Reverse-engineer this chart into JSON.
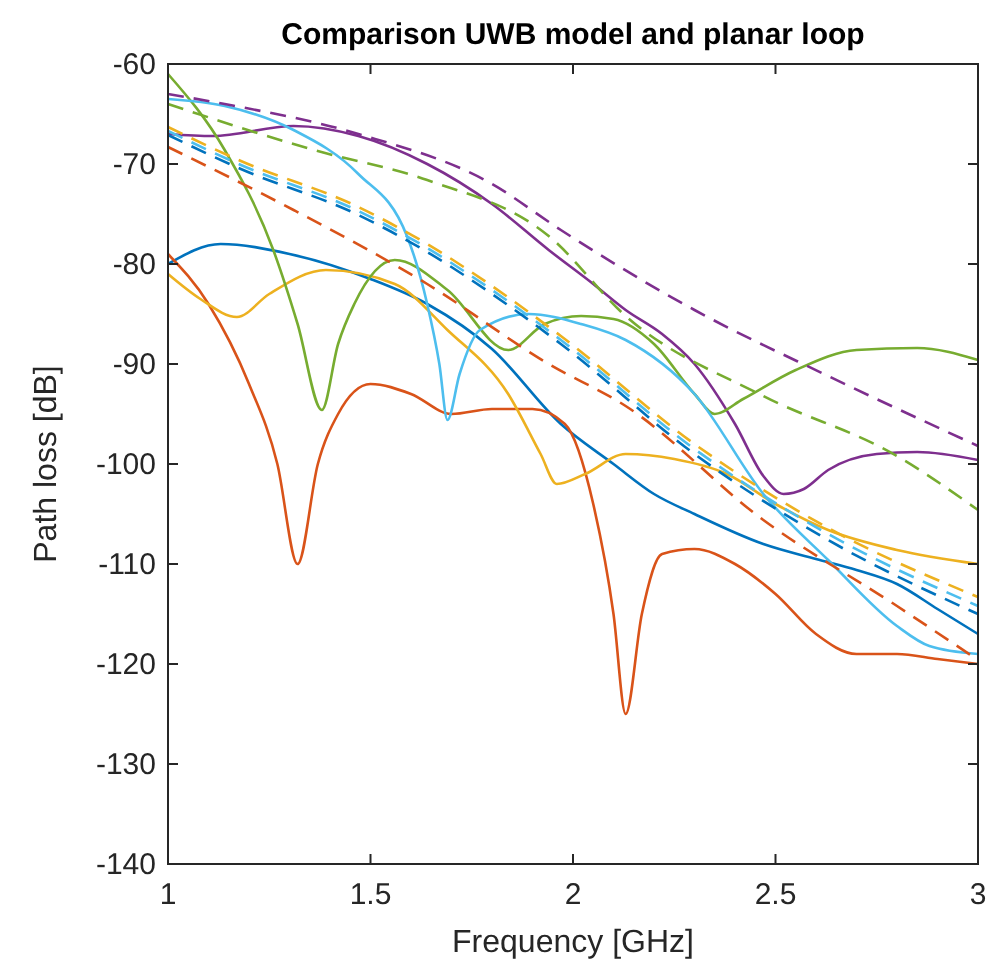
{
  "chart_data": {
    "type": "line",
    "title": "Comparison UWB model and planar loop",
    "xlabel": "Frequency [GHz]",
    "ylabel": "Path loss [dB]",
    "xlim": [
      1,
      3
    ],
    "xticks": [
      1,
      1.5,
      2,
      2.5,
      3
    ],
    "ylim": [
      -140,
      -60
    ],
    "yticks": [
      -140,
      -130,
      -120,
      -110,
      -100,
      -90,
      -80,
      -70,
      -60
    ],
    "grid": false,
    "series": [
      {
        "color": "#0072bd",
        "line_style": "solid",
        "x": [
          1,
          1.13,
          1.3,
          1.5,
          1.64,
          1.8,
          1.97,
          2.1,
          2.2,
          2.3,
          2.47,
          2.6,
          2.7,
          2.8,
          2.9,
          3
        ],
        "values": [
          -80,
          -78,
          -79,
          -81.5,
          -84,
          -88.5,
          -96,
          -100,
          -103,
          -105,
          -108,
          -109.5,
          -110.6,
          -112,
          -114.5,
          -117
        ]
      },
      {
        "color": "#d95319",
        "line_style": "solid",
        "x": [
          1,
          1.1,
          1.2,
          1.27,
          1.32,
          1.37,
          1.42,
          1.5,
          1.6,
          1.7,
          1.8,
          1.9,
          1.98,
          2.05,
          2.1,
          2.13,
          2.17,
          2.22,
          2.3,
          2.4,
          2.5,
          2.6,
          2.7,
          2.8,
          2.9,
          3
        ],
        "values": [
          -79,
          -84,
          -92,
          -100,
          -110,
          -100,
          -95,
          -92,
          -93,
          -95,
          -94.5,
          -94.5,
          -96,
          -104,
          -115,
          -125,
          -115,
          -109,
          -108.5,
          -110,
          -113,
          -117,
          -119,
          -119,
          -119.5,
          -120
        ]
      },
      {
        "color": "#edb120",
        "line_style": "solid",
        "x": [
          1,
          1.08,
          1.17,
          1.25,
          1.39,
          1.56,
          1.69,
          1.84,
          1.92,
          1.96,
          2.03,
          2.13,
          2.25,
          2.38,
          2.5,
          2.63,
          2.8,
          3
        ],
        "values": [
          -81,
          -83.5,
          -85.3,
          -83,
          -80.6,
          -82,
          -86.6,
          -93,
          -99,
          -102,
          -101,
          -99,
          -99.5,
          -101,
          -104,
          -106.6,
          -108.6,
          -110
        ]
      },
      {
        "color": "#7e2f8e",
        "line_style": "solid",
        "x": [
          1,
          1.11,
          1.31,
          1.47,
          1.64,
          1.8,
          1.94,
          2.05,
          2.13,
          2.22,
          2.3,
          2.4,
          2.47,
          2.52,
          2.57,
          2.63,
          2.75,
          2.85,
          3
        ],
        "values": [
          -67,
          -67.2,
          -66.2,
          -67.2,
          -70,
          -74,
          -78.6,
          -82,
          -84.6,
          -87,
          -90,
          -96,
          -101.2,
          -103,
          -102.5,
          -100.6,
          -99,
          -98.8,
          -99.6
        ]
      },
      {
        "color": "#77ac30",
        "line_style": "solid",
        "x": [
          1,
          1.14,
          1.26,
          1.32,
          1.38,
          1.42,
          1.46,
          1.56,
          1.69,
          1.84,
          1.93,
          2.02,
          2.1,
          2.2,
          2.3,
          2.35,
          2.42,
          2.55,
          2.7,
          2.85,
          3
        ],
        "values": [
          -61,
          -68.6,
          -78.6,
          -86,
          -94.6,
          -88,
          -84,
          -79.6,
          -82.6,
          -88.6,
          -86,
          -85.2,
          -85.5,
          -88,
          -93,
          -95,
          -93.5,
          -90.6,
          -88.6,
          -88.4,
          -89.6
        ]
      },
      {
        "color": "#4dbeee",
        "line_style": "solid",
        "x": [
          1,
          1.14,
          1.31,
          1.47,
          1.59,
          1.64,
          1.67,
          1.69,
          1.72,
          1.77,
          1.89,
          2.02,
          2.13,
          2.3,
          2.47,
          2.63,
          2.8,
          2.88,
          3
        ],
        "values": [
          -63.5,
          -64.2,
          -66.6,
          -71,
          -77.2,
          -84,
          -90,
          -95.6,
          -91,
          -86.6,
          -85,
          -86,
          -87.6,
          -93,
          -103,
          -109.6,
          -116.2,
          -118.2,
          -119
        ]
      },
      {
        "color": "#0072bd",
        "line_style": "dashed",
        "x": [
          1,
          1.18,
          1.47,
          1.64,
          1.8,
          1.97,
          2.3,
          2.63,
          3
        ],
        "values": [
          -67.1,
          -70.5,
          -75.1,
          -78.8,
          -83,
          -88,
          -99,
          -107.6,
          -115
        ]
      },
      {
        "color": "#d95319",
        "line_style": "dashed",
        "x": [
          1,
          1.31,
          1.64,
          1.94,
          2.13,
          2.47,
          2.8,
          3
        ],
        "values": [
          -68.3,
          -74.6,
          -82,
          -90,
          -94.2,
          -105.6,
          -114.2,
          -119.6
        ]
      },
      {
        "color": "#edb120",
        "line_style": "dashed",
        "x": [
          1,
          1.18,
          1.47,
          1.64,
          1.8,
          1.97,
          2.3,
          2.63,
          3
        ],
        "values": [
          -66.3,
          -69.7,
          -74.3,
          -78,
          -82.2,
          -87.2,
          -98,
          -106.4,
          -113.3
        ]
      },
      {
        "color": "#7e2f8e",
        "line_style": "dashed",
        "x": [
          1,
          1.14,
          1.47,
          1.8,
          1.97,
          2.3,
          2.63,
          3
        ],
        "values": [
          -63,
          -64,
          -67,
          -72,
          -76.6,
          -84.6,
          -91.2,
          -98.2
        ]
      },
      {
        "color": "#77ac30",
        "line_style": "dashed",
        "x": [
          1,
          1.36,
          1.64,
          1.94,
          2.13,
          2.47,
          2.8,
          3
        ],
        "values": [
          -64,
          -68.6,
          -71.6,
          -77.2,
          -85.2,
          -93.2,
          -99.2,
          -104.6
        ]
      },
      {
        "color": "#4dbeee",
        "line_style": "dashed",
        "x": [
          1,
          1.18,
          1.47,
          1.64,
          1.8,
          1.97,
          2.3,
          2.63,
          3
        ],
        "values": [
          -66.7,
          -70.1,
          -74.7,
          -78.4,
          -82.6,
          -87.6,
          -98.5,
          -107,
          -114.2
        ]
      }
    ]
  }
}
